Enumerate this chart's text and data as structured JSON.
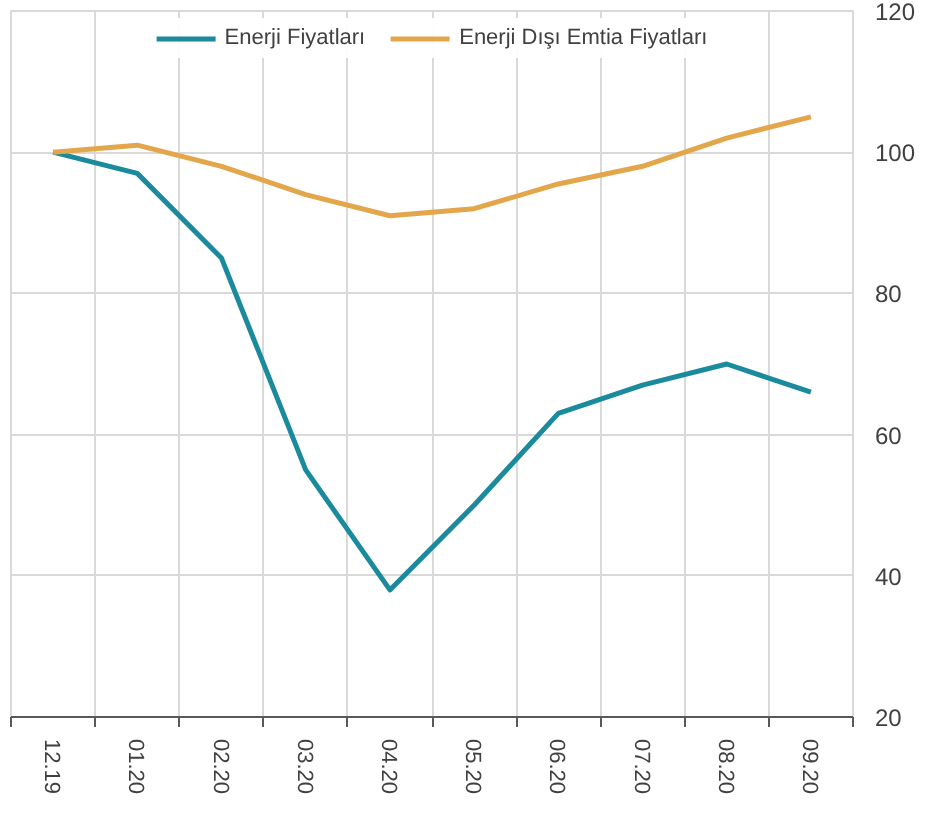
{
  "chart_data": {
    "type": "line",
    "categories": [
      "12.19",
      "01.20",
      "02.20",
      "03.20",
      "04.20",
      "05.20",
      "06.20",
      "07.20",
      "08.20",
      "09.20"
    ],
    "series": [
      {
        "name": "Enerji Fiyatları",
        "color": "#1a8a9c",
        "values": [
          100,
          97,
          85,
          55,
          38,
          50,
          63,
          67,
          70,
          66
        ]
      },
      {
        "name": "Enerji Dışı Emtia Fiyatları",
        "color": "#e3a64a",
        "values": [
          100,
          101,
          98,
          94,
          91,
          92,
          95.5,
          98,
          102,
          105
        ]
      }
    ],
    "ylim": [
      20,
      120
    ],
    "yticks": [
      20,
      40,
      60,
      80,
      100,
      120
    ],
    "grid": true,
    "legend": "top",
    "line_style": "solid",
    "marker": "none"
  }
}
